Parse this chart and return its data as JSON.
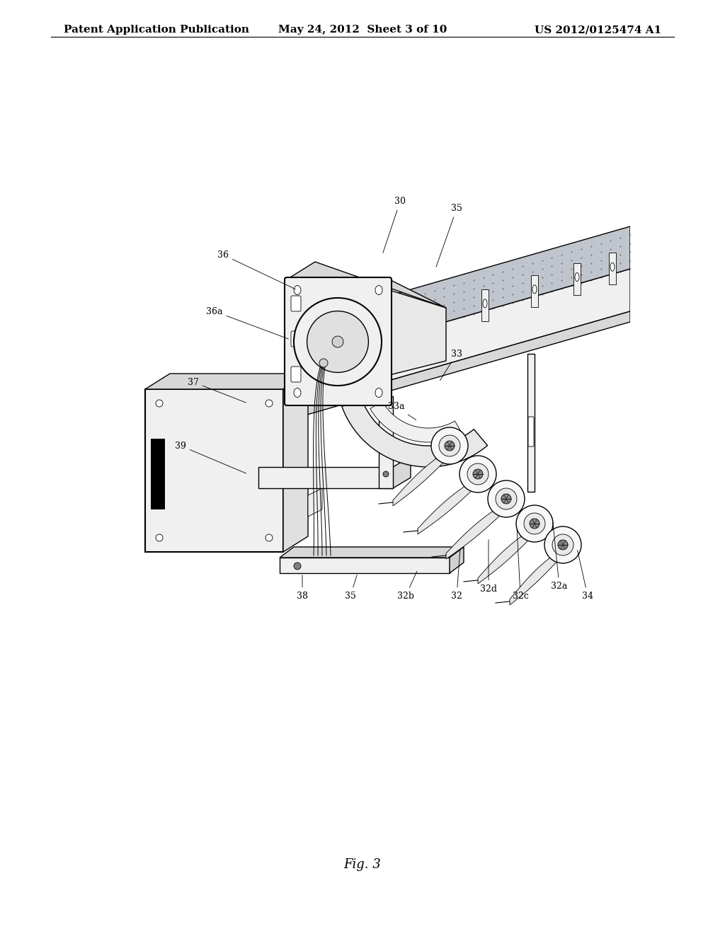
{
  "bg_color": "#ffffff",
  "header_left": "Patent Application Publication",
  "header_center": "May 24, 2012  Sheet 3 of 10",
  "header_right": "US 2012/0125474 A1",
  "footer_label": "Fig. 3",
  "header_fontsize": 11,
  "footer_fontsize": 13
}
